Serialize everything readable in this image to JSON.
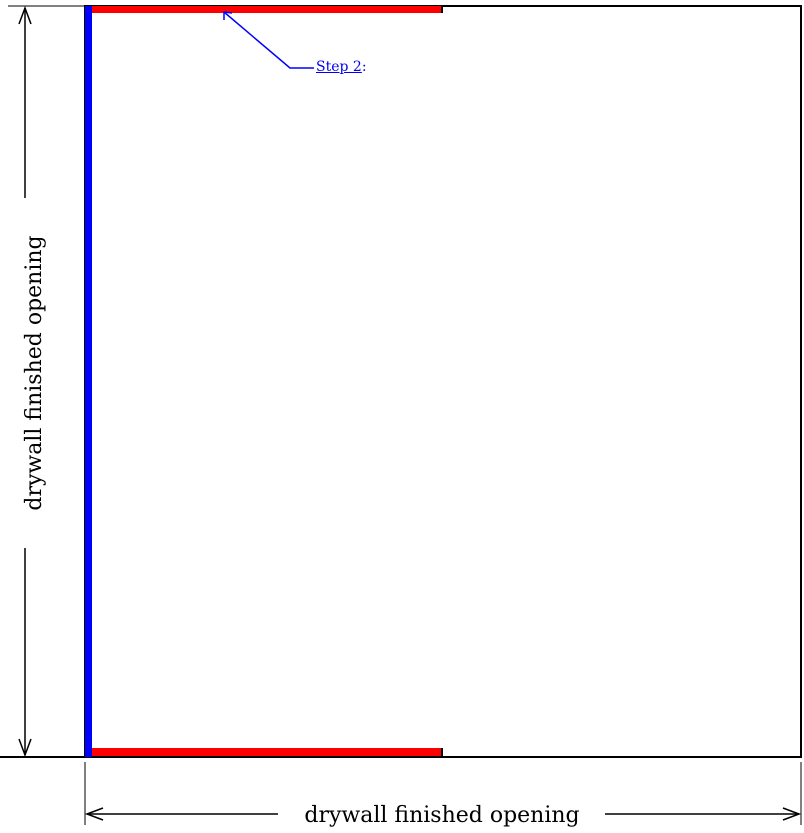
{
  "title": "",
  "step_callout": {
    "label": "Step 2",
    "suffix": ":"
  },
  "dimensions": {
    "horizontal_label": "drywall finished opening",
    "vertical_label": "drywall finished opening"
  },
  "colors": {
    "frame_outline": "#000000",
    "jamb_left": "#0000ff",
    "head_and_sill": "#ff0000",
    "callout_leader": "#0000ff",
    "link_text": "#0000ee"
  }
}
